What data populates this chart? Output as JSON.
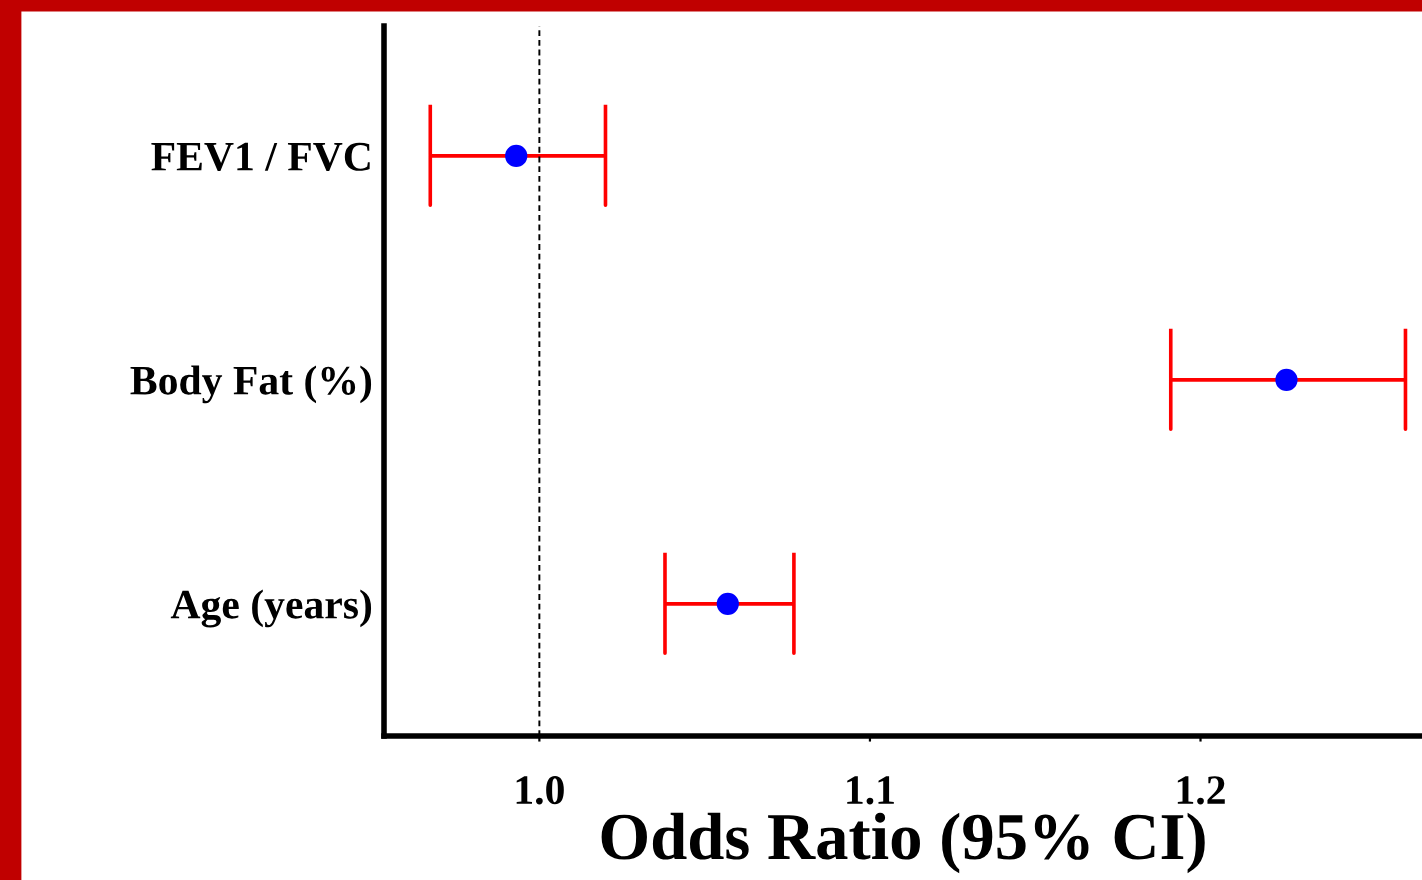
{
  "chart_data": {
    "type": "scatter",
    "orientation": "horizontal",
    "xlabel": "Odds Ratio (95% CI)",
    "categories": [
      "FEV1 / FVC",
      "Body Fat (%)",
      "Age (years)"
    ],
    "series": [
      {
        "color": "#0000ff",
        "values": [
          0.993,
          1.226,
          1.057
        ],
        "errors": [
          [
            0.967,
            1.02
          ],
          [
            1.191,
            1.262
          ],
          [
            1.038,
            1.077
          ]
        ]
      }
    ],
    "xlim": [
      0.953,
      1.267
    ],
    "xticks": [
      {
        "value": 1.0,
        "label": "1.0"
      },
      1.1,
      1.2
    ],
    "ref_lines": [
      {
        "axis": "x",
        "value": 1.0,
        "color": "#000000",
        "line_style": "dashed"
      }
    ],
    "marker": "circle",
    "grid": false,
    "legend": false
  }
}
